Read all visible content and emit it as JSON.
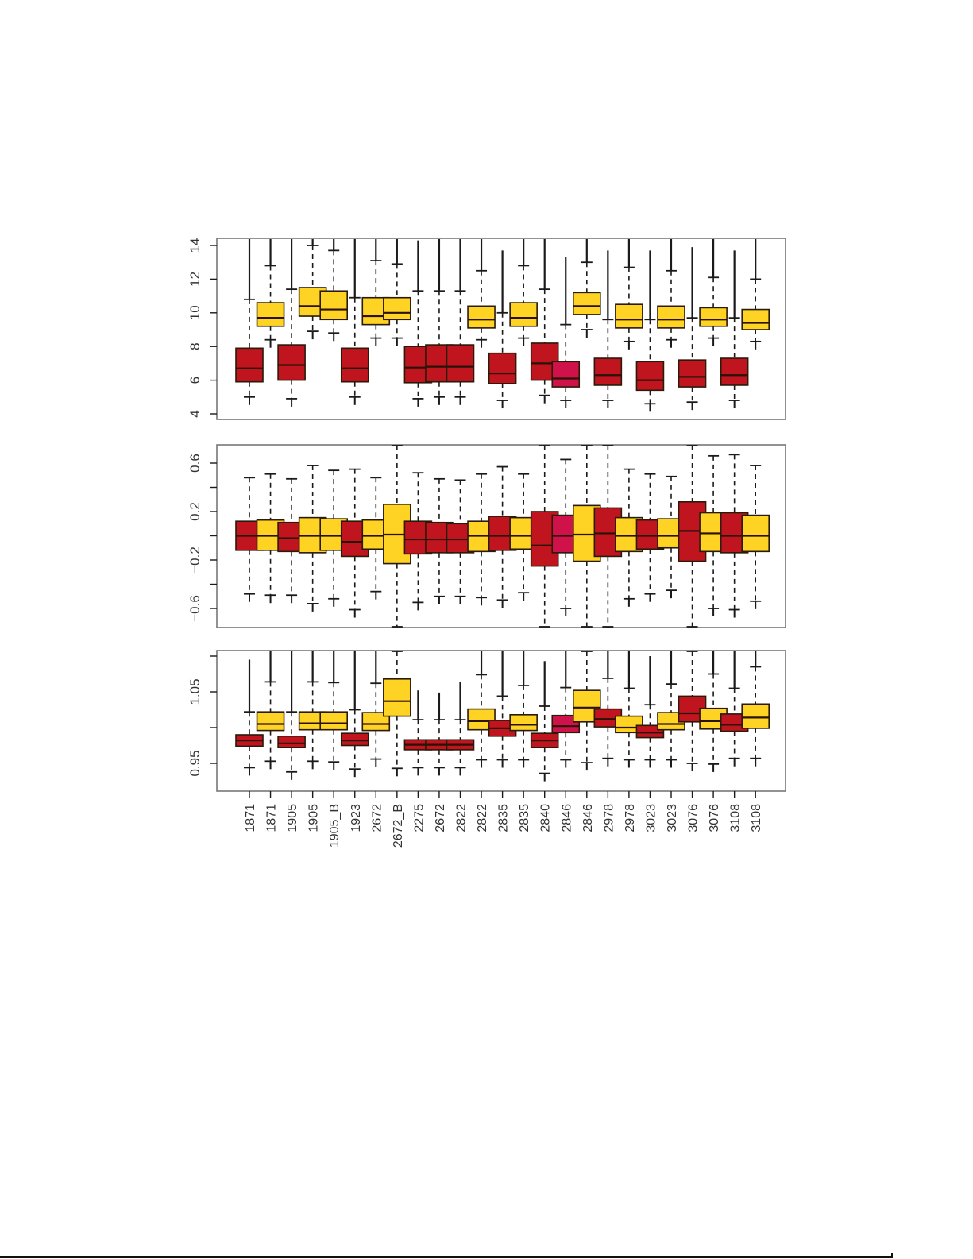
{
  "colors": {
    "red": "#C0141E",
    "crimson": "#D0124A",
    "yellow": "#FFD323",
    "frame": "#777777",
    "ink": "#1a1a1a"
  },
  "chart_data": [
    {
      "type": "boxplot",
      "panel": "top",
      "title": "",
      "xlabel": "",
      "ylabel": "",
      "ylim": [
        4,
        14.4
      ],
      "yticks": [
        4,
        6,
        8,
        10,
        12,
        14
      ],
      "ytick_labels": [
        "4",
        "6",
        "8",
        "10",
        "12",
        "14"
      ],
      "grid": false,
      "categories": [
        "1871",
        "1871",
        "1905",
        "1905",
        "1905_B",
        "1923",
        "2672",
        "2672_B",
        "2275",
        "2672",
        "2822",
        "2822",
        "2835",
        "2835",
        "2840",
        "2846",
        "2846",
        "2978",
        "2978",
        "3023",
        "3023",
        "3076",
        "3076",
        "3108",
        "3108"
      ],
      "boxes": [
        {
          "color": "red",
          "q1": 5.9,
          "median": 6.7,
          "q3": 7.9,
          "whisker_low": 5.0,
          "whisker_high": 10.8,
          "outlier_max": 14.4
        },
        {
          "color": "yellow",
          "q1": 9.2,
          "median": 9.7,
          "q3": 10.6,
          "whisker_low": 8.4,
          "whisker_high": 12.8,
          "outlier_max": 14.4
        },
        {
          "color": "red",
          "q1": 6.0,
          "median": 6.9,
          "q3": 8.1,
          "whisker_low": 4.9,
          "whisker_high": 11.4,
          "outlier_max": 14.4
        },
        {
          "color": "yellow",
          "q1": 9.8,
          "median": 10.4,
          "q3": 11.5,
          "whisker_low": 8.9,
          "whisker_high": 14.0,
          "outlier_max": 14.4
        },
        {
          "color": "yellow",
          "q1": 9.6,
          "median": 10.2,
          "q3": 11.3,
          "whisker_low": 8.8,
          "whisker_high": 13.7,
          "outlier_max": 14.4
        },
        {
          "color": "red",
          "q1": 5.9,
          "median": 6.7,
          "q3": 7.9,
          "whisker_low": 5.0,
          "whisker_high": 10.9,
          "outlier_max": 14.4
        },
        {
          "color": "yellow",
          "q1": 9.3,
          "median": 9.8,
          "q3": 10.9,
          "whisker_low": 8.5,
          "whisker_high": 13.1,
          "outlier_max": 14.4
        },
        {
          "color": "yellow",
          "q1": 9.6,
          "median": 10.0,
          "q3": 10.9,
          "whisker_low": 8.5,
          "whisker_high": 12.9,
          "outlier_max": 14.4
        },
        {
          "color": "red",
          "q1": 5.85,
          "median": 6.75,
          "q3": 8.0,
          "whisker_low": 4.9,
          "whisker_high": 11.3,
          "outlier_max": 14.3
        },
        {
          "color": "red",
          "q1": 5.9,
          "median": 6.8,
          "q3": 8.1,
          "whisker_low": 5.0,
          "whisker_high": 11.3,
          "outlier_max": 14.4
        },
        {
          "color": "red",
          "q1": 5.9,
          "median": 6.8,
          "q3": 8.1,
          "whisker_low": 5.0,
          "whisker_high": 11.3,
          "outlier_max": 14.4
        },
        {
          "color": "yellow",
          "q1": 9.1,
          "median": 9.6,
          "q3": 10.4,
          "whisker_low": 8.4,
          "whisker_high": 12.5,
          "outlier_max": 14.4
        },
        {
          "color": "red",
          "q1": 5.8,
          "median": 6.4,
          "q3": 7.6,
          "whisker_low": 4.8,
          "whisker_high": 10.0,
          "outlier_max": 13.7
        },
        {
          "color": "yellow",
          "q1": 9.2,
          "median": 9.7,
          "q3": 10.6,
          "whisker_low": 8.5,
          "whisker_high": 12.8,
          "outlier_max": 14.4
        },
        {
          "color": "red",
          "q1": 6.0,
          "median": 7.0,
          "q3": 8.2,
          "whisker_low": 5.1,
          "whisker_high": 11.4,
          "outlier_max": 14.4
        },
        {
          "color": "crimson",
          "q1": 5.6,
          "median": 6.1,
          "q3": 7.1,
          "whisker_low": 4.8,
          "whisker_high": 9.3,
          "outlier_max": 13.3
        },
        {
          "color": "yellow",
          "q1": 9.9,
          "median": 10.4,
          "q3": 11.2,
          "whisker_low": 9.0,
          "whisker_high": 13.0,
          "outlier_max": 14.4
        },
        {
          "color": "red",
          "q1": 5.7,
          "median": 6.3,
          "q3": 7.3,
          "whisker_low": 4.8,
          "whisker_high": 9.6,
          "outlier_max": 13.7
        },
        {
          "color": "yellow",
          "q1": 9.1,
          "median": 9.6,
          "q3": 10.5,
          "whisker_low": 8.3,
          "whisker_high": 12.7,
          "outlier_max": 14.4
        },
        {
          "color": "red",
          "q1": 5.4,
          "median": 6.0,
          "q3": 7.1,
          "whisker_low": 4.6,
          "whisker_high": 9.6,
          "outlier_max": 13.7
        },
        {
          "color": "yellow",
          "q1": 9.1,
          "median": 9.6,
          "q3": 10.4,
          "whisker_low": 8.4,
          "whisker_high": 12.5,
          "outlier_max": 14.4
        },
        {
          "color": "red",
          "q1": 5.6,
          "median": 6.2,
          "q3": 7.2,
          "whisker_low": 4.7,
          "whisker_high": 9.7,
          "outlier_max": 13.9
        },
        {
          "color": "yellow",
          "q1": 9.2,
          "median": 9.6,
          "q3": 10.3,
          "whisker_low": 8.5,
          "whisker_high": 12.1,
          "outlier_max": 14.4
        },
        {
          "color": "red",
          "q1": 5.7,
          "median": 6.3,
          "q3": 7.3,
          "whisker_low": 4.8,
          "whisker_high": 9.7,
          "outlier_max": 13.7
        },
        {
          "color": "yellow",
          "q1": 9.0,
          "median": 9.4,
          "q3": 10.2,
          "whisker_low": 8.3,
          "whisker_high": 12.0,
          "outlier_max": 14.4
        }
      ]
    },
    {
      "type": "boxplot",
      "panel": "middle",
      "title": "",
      "xlabel": "",
      "ylabel": "",
      "ylim": [
        -0.76,
        0.76
      ],
      "yticks": [
        -0.6,
        -0.4,
        -0.2,
        0.0,
        0.2,
        0.4,
        0.6
      ],
      "ytick_labels": [
        "-0.6",
        "",
        "-0.2",
        "",
        "0.2",
        "",
        "0.6"
      ],
      "grid": false,
      "categories": [
        "1871",
        "1871",
        "1905",
        "1905",
        "1905_B",
        "1923",
        "2672",
        "2672_B",
        "2275",
        "2672",
        "2822",
        "2822",
        "2835",
        "2835",
        "2840",
        "2846",
        "2846",
        "2978",
        "2978",
        "3023",
        "3023",
        "3076",
        "3076",
        "3108",
        "3108"
      ],
      "boxes": [
        {
          "color": "red",
          "q1": -0.12,
          "median": 0.0,
          "q3": 0.12,
          "whisker_low": -0.48,
          "whisker_high": 0.48
        },
        {
          "color": "yellow",
          "q1": -0.12,
          "median": 0.0,
          "q3": 0.13,
          "whisker_low": -0.49,
          "whisker_high": 0.51
        },
        {
          "color": "red",
          "q1": -0.13,
          "median": -0.02,
          "q3": 0.11,
          "whisker_low": -0.49,
          "whisker_high": 0.47
        },
        {
          "color": "yellow",
          "q1": -0.14,
          "median": 0.0,
          "q3": 0.15,
          "whisker_low": -0.56,
          "whisker_high": 0.58
        },
        {
          "color": "yellow",
          "q1": -0.12,
          "median": 0.0,
          "q3": 0.14,
          "whisker_low": -0.52,
          "whisker_high": 0.54
        },
        {
          "color": "red",
          "q1": -0.17,
          "median": -0.05,
          "q3": 0.12,
          "whisker_low": -0.61,
          "whisker_high": 0.55
        },
        {
          "color": "yellow",
          "q1": -0.11,
          "median": 0.0,
          "q3": 0.13,
          "whisker_low": -0.46,
          "whisker_high": 0.48
        },
        {
          "color": "yellow",
          "q1": -0.23,
          "median": 0.01,
          "q3": 0.26,
          "whisker_low": -0.76,
          "whisker_high": 0.76
        },
        {
          "color": "red",
          "q1": -0.15,
          "median": -0.03,
          "q3": 0.12,
          "whisker_low": -0.55,
          "whisker_high": 0.52
        },
        {
          "color": "red",
          "q1": -0.14,
          "median": -0.03,
          "q3": 0.11,
          "whisker_low": -0.5,
          "whisker_high": 0.47
        },
        {
          "color": "red",
          "q1": -0.14,
          "median": -0.03,
          "q3": 0.1,
          "whisker_low": -0.5,
          "whisker_high": 0.46
        },
        {
          "color": "yellow",
          "q1": -0.13,
          "median": 0.0,
          "q3": 0.12,
          "whisker_low": -0.51,
          "whisker_high": 0.51
        },
        {
          "color": "red",
          "q1": -0.12,
          "median": 0.0,
          "q3": 0.16,
          "whisker_low": -0.53,
          "whisker_high": 0.57
        },
        {
          "color": "yellow",
          "q1": -0.11,
          "median": 0.0,
          "q3": 0.15,
          "whisker_low": -0.47,
          "whisker_high": 0.51
        },
        {
          "color": "red",
          "q1": -0.25,
          "median": -0.08,
          "q3": 0.2,
          "whisker_low": -0.76,
          "whisker_high": 0.76
        },
        {
          "color": "crimson",
          "q1": -0.14,
          "median": 0.0,
          "q3": 0.17,
          "whisker_low": -0.6,
          "whisker_high": 0.63
        },
        {
          "color": "yellow",
          "q1": -0.21,
          "median": 0.01,
          "q3": 0.25,
          "whisker_low": -0.76,
          "whisker_high": 0.76
        },
        {
          "color": "red",
          "q1": -0.17,
          "median": 0.02,
          "q3": 0.23,
          "whisker_low": -0.76,
          "whisker_high": 0.76
        },
        {
          "color": "yellow",
          "q1": -0.13,
          "median": 0.0,
          "q3": 0.15,
          "whisker_low": -0.52,
          "whisker_high": 0.55
        },
        {
          "color": "red",
          "q1": -0.11,
          "median": 0.0,
          "q3": 0.13,
          "whisker_low": -0.48,
          "whisker_high": 0.51
        },
        {
          "color": "yellow",
          "q1": -0.1,
          "median": 0.0,
          "q3": 0.14,
          "whisker_low": -0.45,
          "whisker_high": 0.49
        },
        {
          "color": "red",
          "q1": -0.21,
          "median": 0.04,
          "q3": 0.28,
          "whisker_low": -0.76,
          "whisker_high": 0.76
        },
        {
          "color": "yellow",
          "q1": -0.13,
          "median": 0.02,
          "q3": 0.19,
          "whisker_low": -0.6,
          "whisker_high": 0.66
        },
        {
          "color": "red",
          "q1": -0.14,
          "median": 0.0,
          "q3": 0.19,
          "whisker_low": -0.61,
          "whisker_high": 0.67
        },
        {
          "color": "yellow",
          "q1": -0.13,
          "median": 0.0,
          "q3": 0.17,
          "whisker_low": -0.54,
          "whisker_high": 0.58
        }
      ]
    },
    {
      "type": "boxplot",
      "panel": "bottom",
      "title": "",
      "xlabel": "",
      "ylabel": "",
      "ylim": [
        0.911,
        1.107
      ],
      "yticks": [
        0.95,
        1.0,
        1.05,
        1.1
      ],
      "ytick_labels": [
        "0.95",
        "",
        "1.05",
        ""
      ],
      "grid": false,
      "categories": [
        "1871",
        "1871",
        "1905",
        "1905",
        "1905_B",
        "1923",
        "2672",
        "2672_B",
        "2275",
        "2672",
        "2822",
        "2822",
        "2835",
        "2835",
        "2840",
        "2846",
        "2846",
        "2978",
        "2978",
        "3023",
        "3023",
        "3076",
        "3076",
        "3108",
        "3108"
      ],
      "boxes": [
        {
          "color": "red",
          "q1": 0.974,
          "median": 0.982,
          "q3": 0.99,
          "whisker_low": 0.944,
          "whisker_high": 1.022,
          "outlier_max": 1.095
        },
        {
          "color": "yellow",
          "q1": 0.996,
          "median": 1.005,
          "q3": 1.022,
          "whisker_low": 0.953,
          "whisker_high": 1.064,
          "outlier_max": 1.107
        },
        {
          "color": "red",
          "q1": 0.972,
          "median": 0.978,
          "q3": 0.988,
          "whisker_low": 0.938,
          "whisker_high": 1.022,
          "outlier_max": 1.107
        },
        {
          "color": "yellow",
          "q1": 0.997,
          "median": 1.006,
          "q3": 1.022,
          "whisker_low": 0.953,
          "whisker_high": 1.064,
          "outlier_max": 1.107
        },
        {
          "color": "yellow",
          "q1": 0.997,
          "median": 1.006,
          "q3": 1.022,
          "whisker_low": 0.952,
          "whisker_high": 1.063,
          "outlier_max": 1.107
        },
        {
          "color": "red",
          "q1": 0.975,
          "median": 0.982,
          "q3": 0.992,
          "whisker_low": 0.942,
          "whisker_high": 1.025,
          "outlier_max": 1.107
        },
        {
          "color": "yellow",
          "q1": 0.996,
          "median": 1.005,
          "q3": 1.021,
          "whisker_low": 0.956,
          "whisker_high": 1.062,
          "outlier_max": 1.107
        },
        {
          "color": "yellow",
          "q1": 1.016,
          "median": 1.037,
          "q3": 1.068,
          "whisker_low": 0.943,
          "whisker_high": 1.107
        },
        {
          "color": "red",
          "q1": 0.969,
          "median": 0.976,
          "q3": 0.983,
          "whisker_low": 0.944,
          "whisker_high": 1.011,
          "outlier_max": 1.052
        },
        {
          "color": "red",
          "q1": 0.969,
          "median": 0.976,
          "q3": 0.983,
          "whisker_low": 0.944,
          "whisker_high": 1.011,
          "outlier_max": 1.049
        },
        {
          "color": "red",
          "q1": 0.969,
          "median": 0.976,
          "q3": 0.983,
          "whisker_low": 0.944,
          "whisker_high": 1.011,
          "outlier_max": 1.064
        },
        {
          "color": "yellow",
          "q1": 0.997,
          "median": 1.009,
          "q3": 1.026,
          "whisker_low": 0.955,
          "whisker_high": 1.074,
          "outlier_max": 1.107
        },
        {
          "color": "red",
          "q1": 0.988,
          "median": 0.999,
          "q3": 1.01,
          "whisker_low": 0.955,
          "whisker_high": 1.044,
          "outlier_max": 1.107
        },
        {
          "color": "yellow",
          "q1": 0.996,
          "median": 1.004,
          "q3": 1.018,
          "whisker_low": 0.955,
          "whisker_high": 1.059,
          "outlier_max": 1.107
        },
        {
          "color": "red",
          "q1": 0.972,
          "median": 0.982,
          "q3": 0.992,
          "whisker_low": 0.936,
          "whisker_high": 1.03,
          "outlier_max": 1.093
        },
        {
          "color": "crimson",
          "q1": 0.993,
          "median": 1.002,
          "q3": 1.017,
          "whisker_low": 0.955,
          "whisker_high": 1.056,
          "outlier_max": 1.107
        },
        {
          "color": "yellow",
          "q1": 1.008,
          "median": 1.028,
          "q3": 1.052,
          "whisker_low": 0.951,
          "whisker_high": 1.107
        },
        {
          "color": "red",
          "q1": 1.001,
          "median": 1.012,
          "q3": 1.026,
          "whisker_low": 0.957,
          "whisker_high": 1.069,
          "outlier_max": 1.107
        },
        {
          "color": "yellow",
          "q1": 0.993,
          "median": 1.0,
          "q3": 1.016,
          "whisker_low": 0.955,
          "whisker_high": 1.055,
          "outlier_max": 1.107
        },
        {
          "color": "red",
          "q1": 0.986,
          "median": 0.993,
          "q3": 1.003,
          "whisker_low": 0.955,
          "whisker_high": 1.032,
          "outlier_max": 1.1
        },
        {
          "color": "yellow",
          "q1": 0.997,
          "median": 1.005,
          "q3": 1.021,
          "whisker_low": 0.955,
          "whisker_high": 1.061,
          "outlier_max": 1.107
        },
        {
          "color": "red",
          "q1": 1.008,
          "median": 1.02,
          "q3": 1.044,
          "whisker_low": 0.95,
          "whisker_high": 1.107
        },
        {
          "color": "yellow",
          "q1": 0.998,
          "median": 1.009,
          "q3": 1.027,
          "whisker_low": 0.949,
          "whisker_high": 1.075,
          "outlier_max": 1.107
        },
        {
          "color": "red",
          "q1": 0.995,
          "median": 1.004,
          "q3": 1.019,
          "whisker_low": 0.957,
          "whisker_high": 1.055,
          "outlier_max": 1.107
        },
        {
          "color": "yellow",
          "q1": 0.999,
          "median": 1.014,
          "q3": 1.033,
          "whisker_low": 0.957,
          "whisker_high": 1.085,
          "outlier_max": 1.107
        }
      ]
    }
  ]
}
